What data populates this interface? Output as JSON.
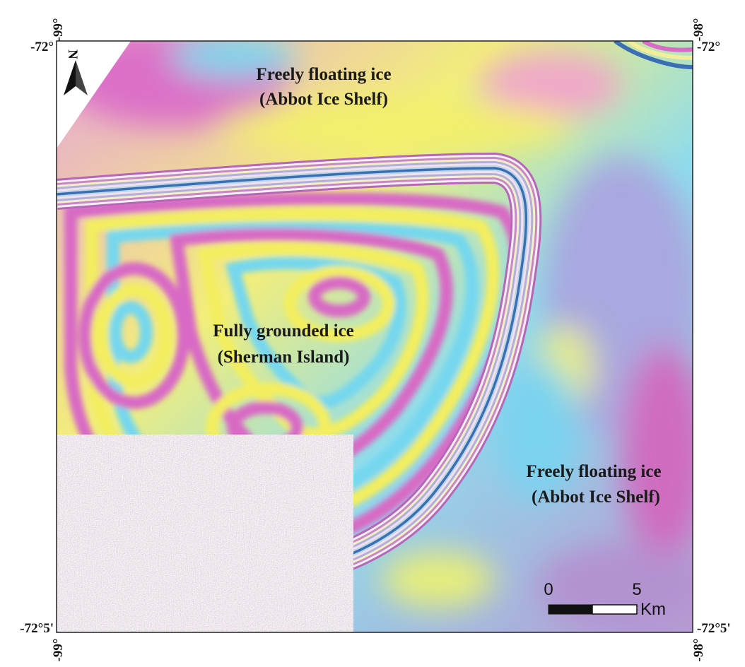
{
  "map": {
    "coordinates": {
      "top_left_lon": "-99°",
      "top_right_lon": "-98°",
      "bottom_left_lon": "-99°",
      "bottom_right_lon": "-98°",
      "left_top_lat": "-72°",
      "right_top_lat": "-72°",
      "left_bottom_lat": "-72°5'",
      "right_bottom_lat": "-72°5'"
    },
    "north_arrow": "N",
    "annotations": [
      {
        "line1": "Freely floating ice",
        "line2": "(Abbot Ice Shelf)"
      },
      {
        "line1": "Fully grounded ice",
        "line2": "(Sherman Island)"
      },
      {
        "line1": "Freely floating ice",
        "line2": "(Abbot Ice Shelf)"
      }
    ],
    "scale_bar": {
      "ticks": [
        "0",
        "5"
      ],
      "unit": "Km"
    }
  }
}
